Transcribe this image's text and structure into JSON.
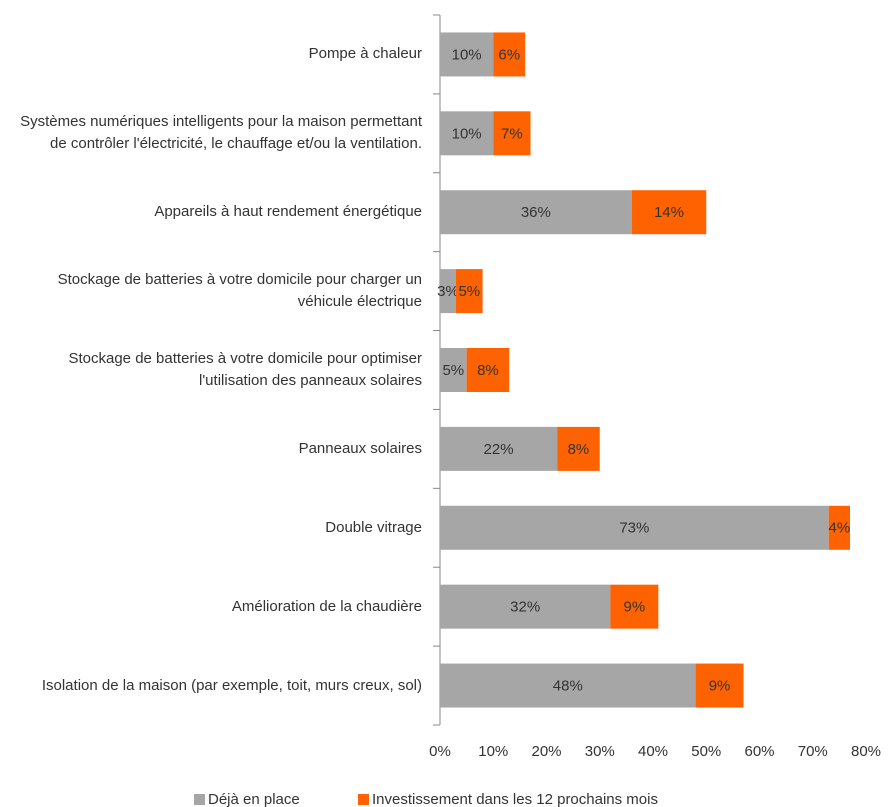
{
  "chart_data": {
    "type": "stacked_barh",
    "categories": [
      "Pompe à chaleur",
      "Systèmes numériques intelligents pour la maison permettant de contrôler l'électricité, le chauffage et/ou la ventilation.",
      "Appareils à haut rendement énergétique",
      "Stockage de batteries à votre domicile pour charger un véhicule électrique",
      "Stockage de batteries à votre domicile pour optimiser l'utilisation des panneaux solaires",
      "Panneaux solaires",
      "Double vitrage",
      "Amélioration de la chaudière",
      "Isolation de la maison (par exemple, toit, murs creux, sol)"
    ],
    "series": [
      {
        "name": "Déjà en place",
        "color": "#a6a6a6",
        "values": [
          10,
          10,
          36,
          3,
          5,
          22,
          73,
          32,
          48
        ],
        "value_labels": [
          "10%",
          "10%",
          "36%",
          "3%",
          "5%",
          "22%",
          "73%",
          "32%",
          "48%"
        ]
      },
      {
        "name": "Investissement dans les 12 prochains mois",
        "color": "#ff6200",
        "values": [
          6,
          7,
          14,
          5,
          8,
          8,
          4,
          9,
          9
        ],
        "value_labels": [
          "6%",
          "7%",
          "14%",
          "5%",
          "8%",
          "8%",
          "4%",
          "9%",
          "9%"
        ]
      }
    ],
    "xlim": [
      0,
      80
    ],
    "xticks": [
      {
        "value": 0,
        "label": "0%"
      },
      {
        "value": 10,
        "label": "10%"
      },
      {
        "value": 20,
        "label": "20%"
      },
      {
        "value": 30,
        "label": "30%"
      },
      {
        "value": 40,
        "label": "40%"
      },
      {
        "value": 50,
        "label": "50%"
      },
      {
        "value": 60,
        "label": "60%"
      },
      {
        "value": 70,
        "label": "70%"
      },
      {
        "value": 80,
        "label": "80%"
      }
    ],
    "legend": "bottom"
  }
}
